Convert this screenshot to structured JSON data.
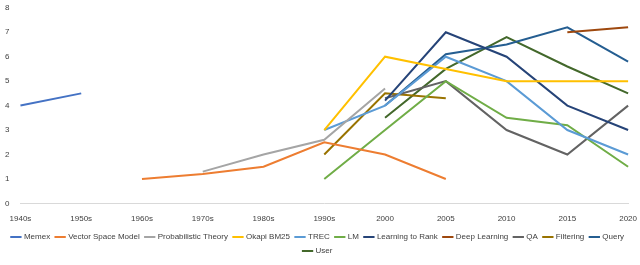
{
  "chart_data": {
    "type": "line",
    "categories": [
      "1940s",
      "1950s",
      "1960s",
      "1970s",
      "1980s",
      "1990s",
      "2000",
      "2005",
      "2010",
      "2015",
      "2020"
    ],
    "series": [
      {
        "name": "Memex",
        "color": "#4472c4",
        "values": [
          4,
          4.5,
          null,
          null,
          null,
          null,
          null,
          null,
          null,
          null,
          null
        ]
      },
      {
        "name": "Vector Space Model",
        "color": "#ed7d31",
        "values": [
          null,
          null,
          1,
          1.2,
          1.5,
          2.5,
          2,
          1,
          null,
          null,
          null
        ]
      },
      {
        "name": "Probabilistic Theory",
        "color": "#a5a5a5",
        "values": [
          null,
          null,
          null,
          1.3,
          2,
          2.6,
          4.7,
          null,
          null,
          null,
          null
        ]
      },
      {
        "name": "Okapi BM25",
        "color": "#ffc000",
        "values": [
          null,
          null,
          null,
          null,
          null,
          3,
          6,
          5.5,
          5,
          5,
          5
        ]
      },
      {
        "name": "TREC",
        "color": "#5b9bd5",
        "values": [
          null,
          null,
          null,
          null,
          null,
          3,
          4,
          6,
          5,
          3,
          2
        ]
      },
      {
        "name": "LM",
        "color": "#70ad47",
        "values": [
          null,
          null,
          null,
          null,
          null,
          1,
          3,
          5,
          3.5,
          3.2,
          1.5
        ]
      },
      {
        "name": "Learning to Rank",
        "color": "#264478",
        "values": [
          null,
          null,
          null,
          null,
          null,
          null,
          4.2,
          7,
          6,
          4,
          3
        ]
      },
      {
        "name": "Deep Learning",
        "color": "#9e480e",
        "values": [
          null,
          null,
          null,
          null,
          null,
          null,
          null,
          null,
          null,
          7,
          7.2
        ]
      },
      {
        "name": "QA",
        "color": "#636363",
        "values": [
          null,
          null,
          null,
          null,
          null,
          null,
          4.3,
          5,
          3,
          2,
          4
        ]
      },
      {
        "name": "Filtering",
        "color": "#997300",
        "values": [
          null,
          null,
          null,
          null,
          null,
          2,
          4.5,
          4.3,
          null,
          null,
          null
        ]
      },
      {
        "name": "Query",
        "color": "#255e91",
        "values": [
          null,
          null,
          null,
          null,
          null,
          null,
          4,
          6.1,
          6.5,
          7.2,
          5.8
        ]
      },
      {
        "name": "User",
        "color": "#43682b",
        "values": [
          null,
          null,
          null,
          null,
          null,
          null,
          3.5,
          5.5,
          6.8,
          5.6,
          4.5
        ]
      }
    ],
    "ylim": [
      0,
      8
    ],
    "yticks": [
      0,
      1,
      2,
      3,
      4,
      5,
      6,
      7,
      8
    ],
    "grid": false,
    "legend": "bottom",
    "marker": "none"
  }
}
